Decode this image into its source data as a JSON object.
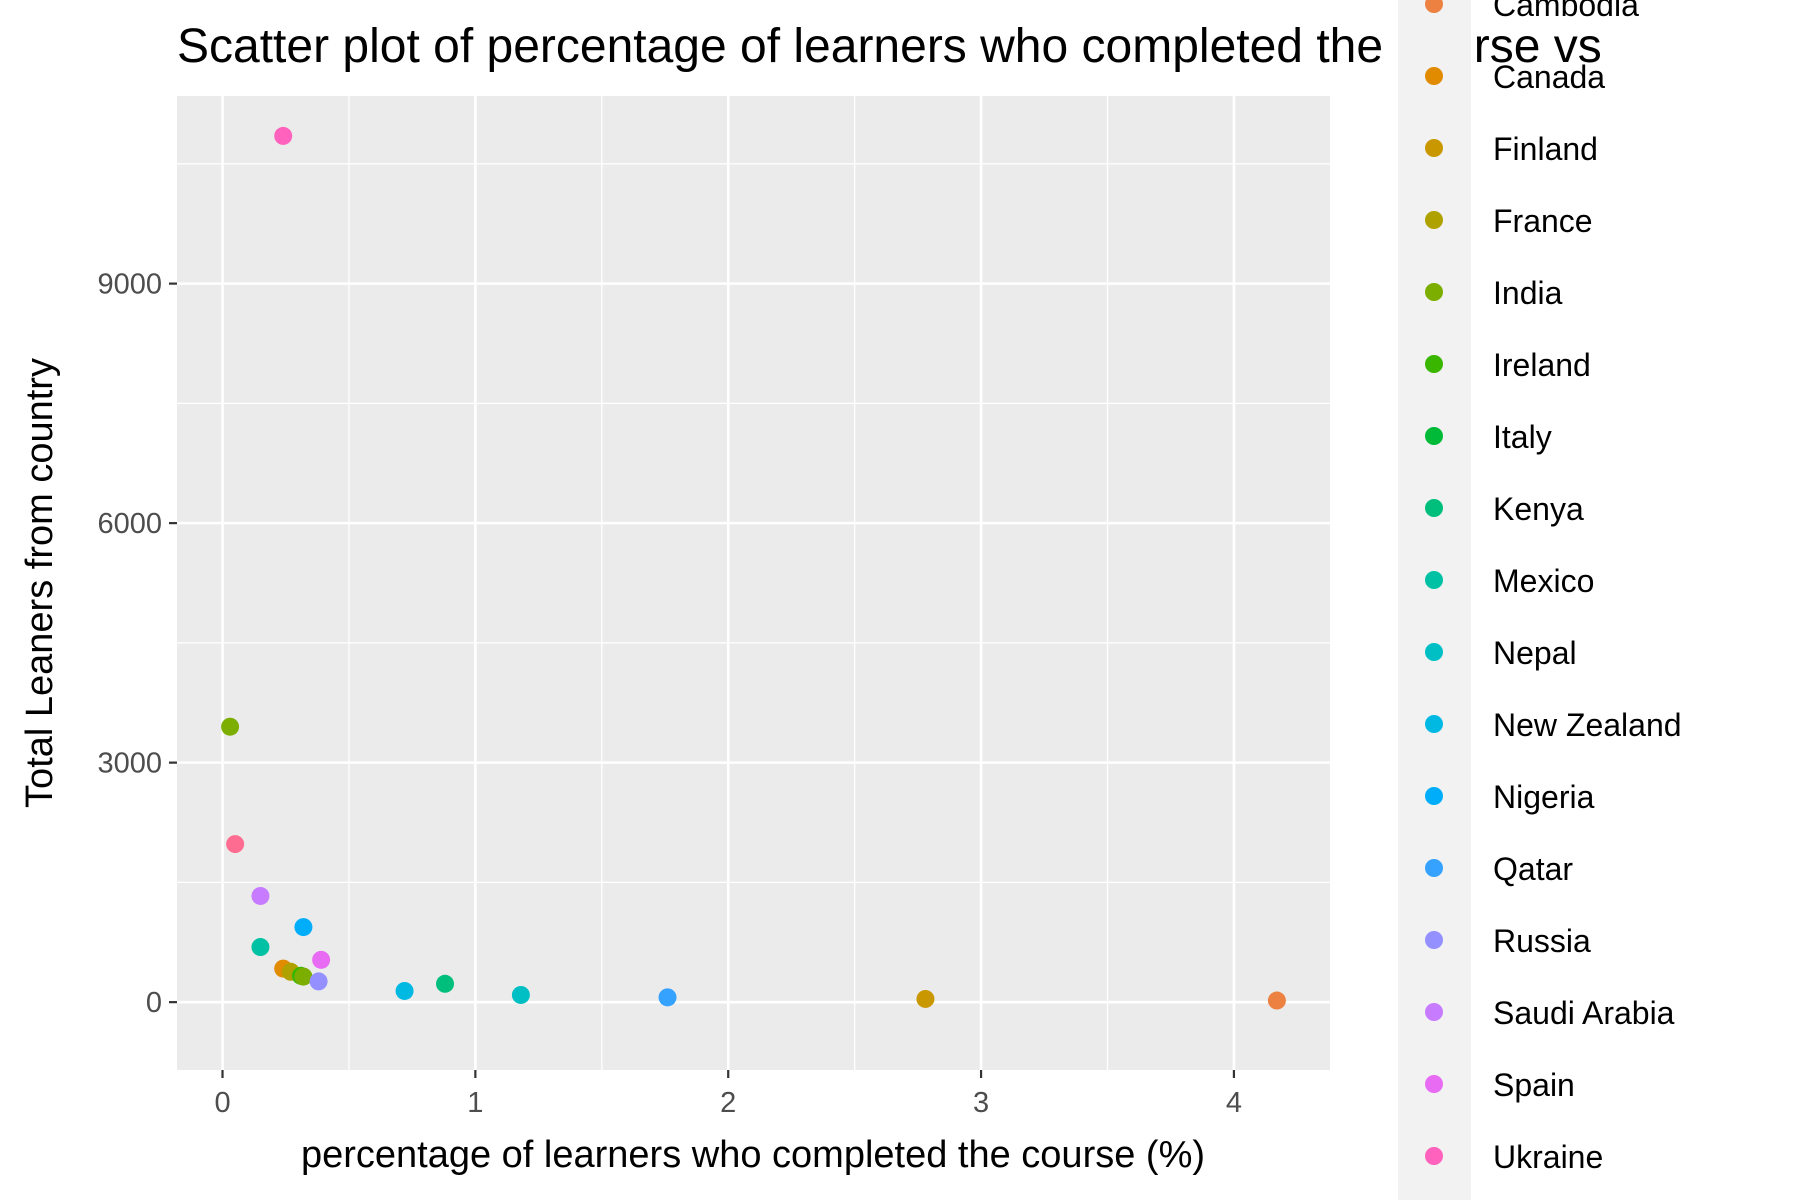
{
  "chart_data": {
    "type": "scatter",
    "title": "Scatter plot of percentage of learners who completed the course vs",
    "xlabel": "percentage of learners who completed the course (%)",
    "ylabel": "Total Leaners from country",
    "xlim": [
      -0.18,
      4.38
    ],
    "ylim": [
      -850,
      11350
    ],
    "x_ticks": [
      0,
      1,
      2,
      3,
      4
    ],
    "x_tick_labels": [
      "0",
      "1",
      "2",
      "3",
      "4"
    ],
    "y_ticks": [
      0,
      3000,
      6000,
      9000
    ],
    "y_tick_labels": [
      "0",
      "3000",
      "6000",
      "9000"
    ],
    "grid": true,
    "legend_position": "right",
    "legend": [
      {
        "label": "Cambodia",
        "color": "#ED8141"
      },
      {
        "label": "Canada",
        "color": "#E08B00"
      },
      {
        "label": "Finland",
        "color": "#C99800"
      },
      {
        "label": "France",
        "color": "#AFA100"
      },
      {
        "label": "India",
        "color": "#7CAE00"
      },
      {
        "label": "Ireland",
        "color": "#39B600"
      },
      {
        "label": "Italy",
        "color": "#00BA38"
      },
      {
        "label": "Kenya",
        "color": "#00BF7D"
      },
      {
        "label": "Mexico",
        "color": "#00C1A3"
      },
      {
        "label": "Nepal",
        "color": "#00BFC4"
      },
      {
        "label": "New Zealand",
        "color": "#00B9E3"
      },
      {
        "label": "Nigeria",
        "color": "#00ADFA"
      },
      {
        "label": "Qatar",
        "color": "#35A2FF"
      },
      {
        "label": "Russia",
        "color": "#9590FF"
      },
      {
        "label": "Saudi Arabia",
        "color": "#C77CFF"
      },
      {
        "label": "Spain",
        "color": "#E76BF3"
      },
      {
        "label": "Ukraine",
        "color": "#FF62BC"
      }
    ],
    "points": [
      {
        "x": 0.24,
        "y": 10850,
        "color": "#FF62BC"
      },
      {
        "x": 0.03,
        "y": 3450,
        "color": "#7CAE00"
      },
      {
        "x": 0.05,
        "y": 1980,
        "color": "#FF6C91"
      },
      {
        "x": 0.15,
        "y": 1330,
        "color": "#C77CFF"
      },
      {
        "x": 0.32,
        "y": 940,
        "color": "#00ADFA"
      },
      {
        "x": 0.15,
        "y": 690,
        "color": "#00C1A3"
      },
      {
        "x": 0.39,
        "y": 530,
        "color": "#E76BF3"
      },
      {
        "x": 0.24,
        "y": 420,
        "color": "#E08B00"
      },
      {
        "x": 0.27,
        "y": 380,
        "color": "#AFA100"
      },
      {
        "x": 0.31,
        "y": 330,
        "color": "#39B600"
      },
      {
        "x": 0.32,
        "y": 320,
        "color": "#7CAE00"
      },
      {
        "x": 0.38,
        "y": 260,
        "color": "#9590FF"
      },
      {
        "x": 0.88,
        "y": 230,
        "color": "#00BF7D"
      },
      {
        "x": 0.72,
        "y": 140,
        "color": "#00B9E3"
      },
      {
        "x": 1.18,
        "y": 90,
        "color": "#00BFC4"
      },
      {
        "x": 1.76,
        "y": 60,
        "color": "#35A2FF"
      },
      {
        "x": 2.78,
        "y": 40,
        "color": "#C99800"
      },
      {
        "x": 4.17,
        "y": 20,
        "color": "#ED8141"
      }
    ]
  }
}
